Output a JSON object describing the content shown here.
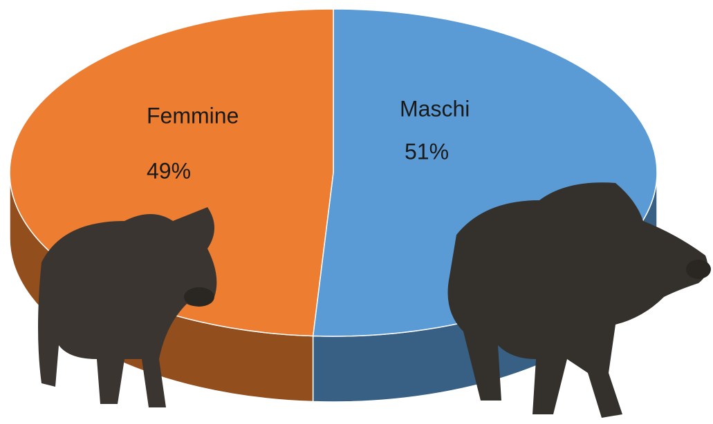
{
  "chart_data": {
    "type": "pie",
    "categories": [
      "Maschi",
      "Femmine"
    ],
    "values": [
      51,
      49
    ],
    "value_labels": [
      "51%",
      "49%"
    ],
    "colors": [
      "#5b9bd5",
      "#ed7d31"
    ]
  }
}
